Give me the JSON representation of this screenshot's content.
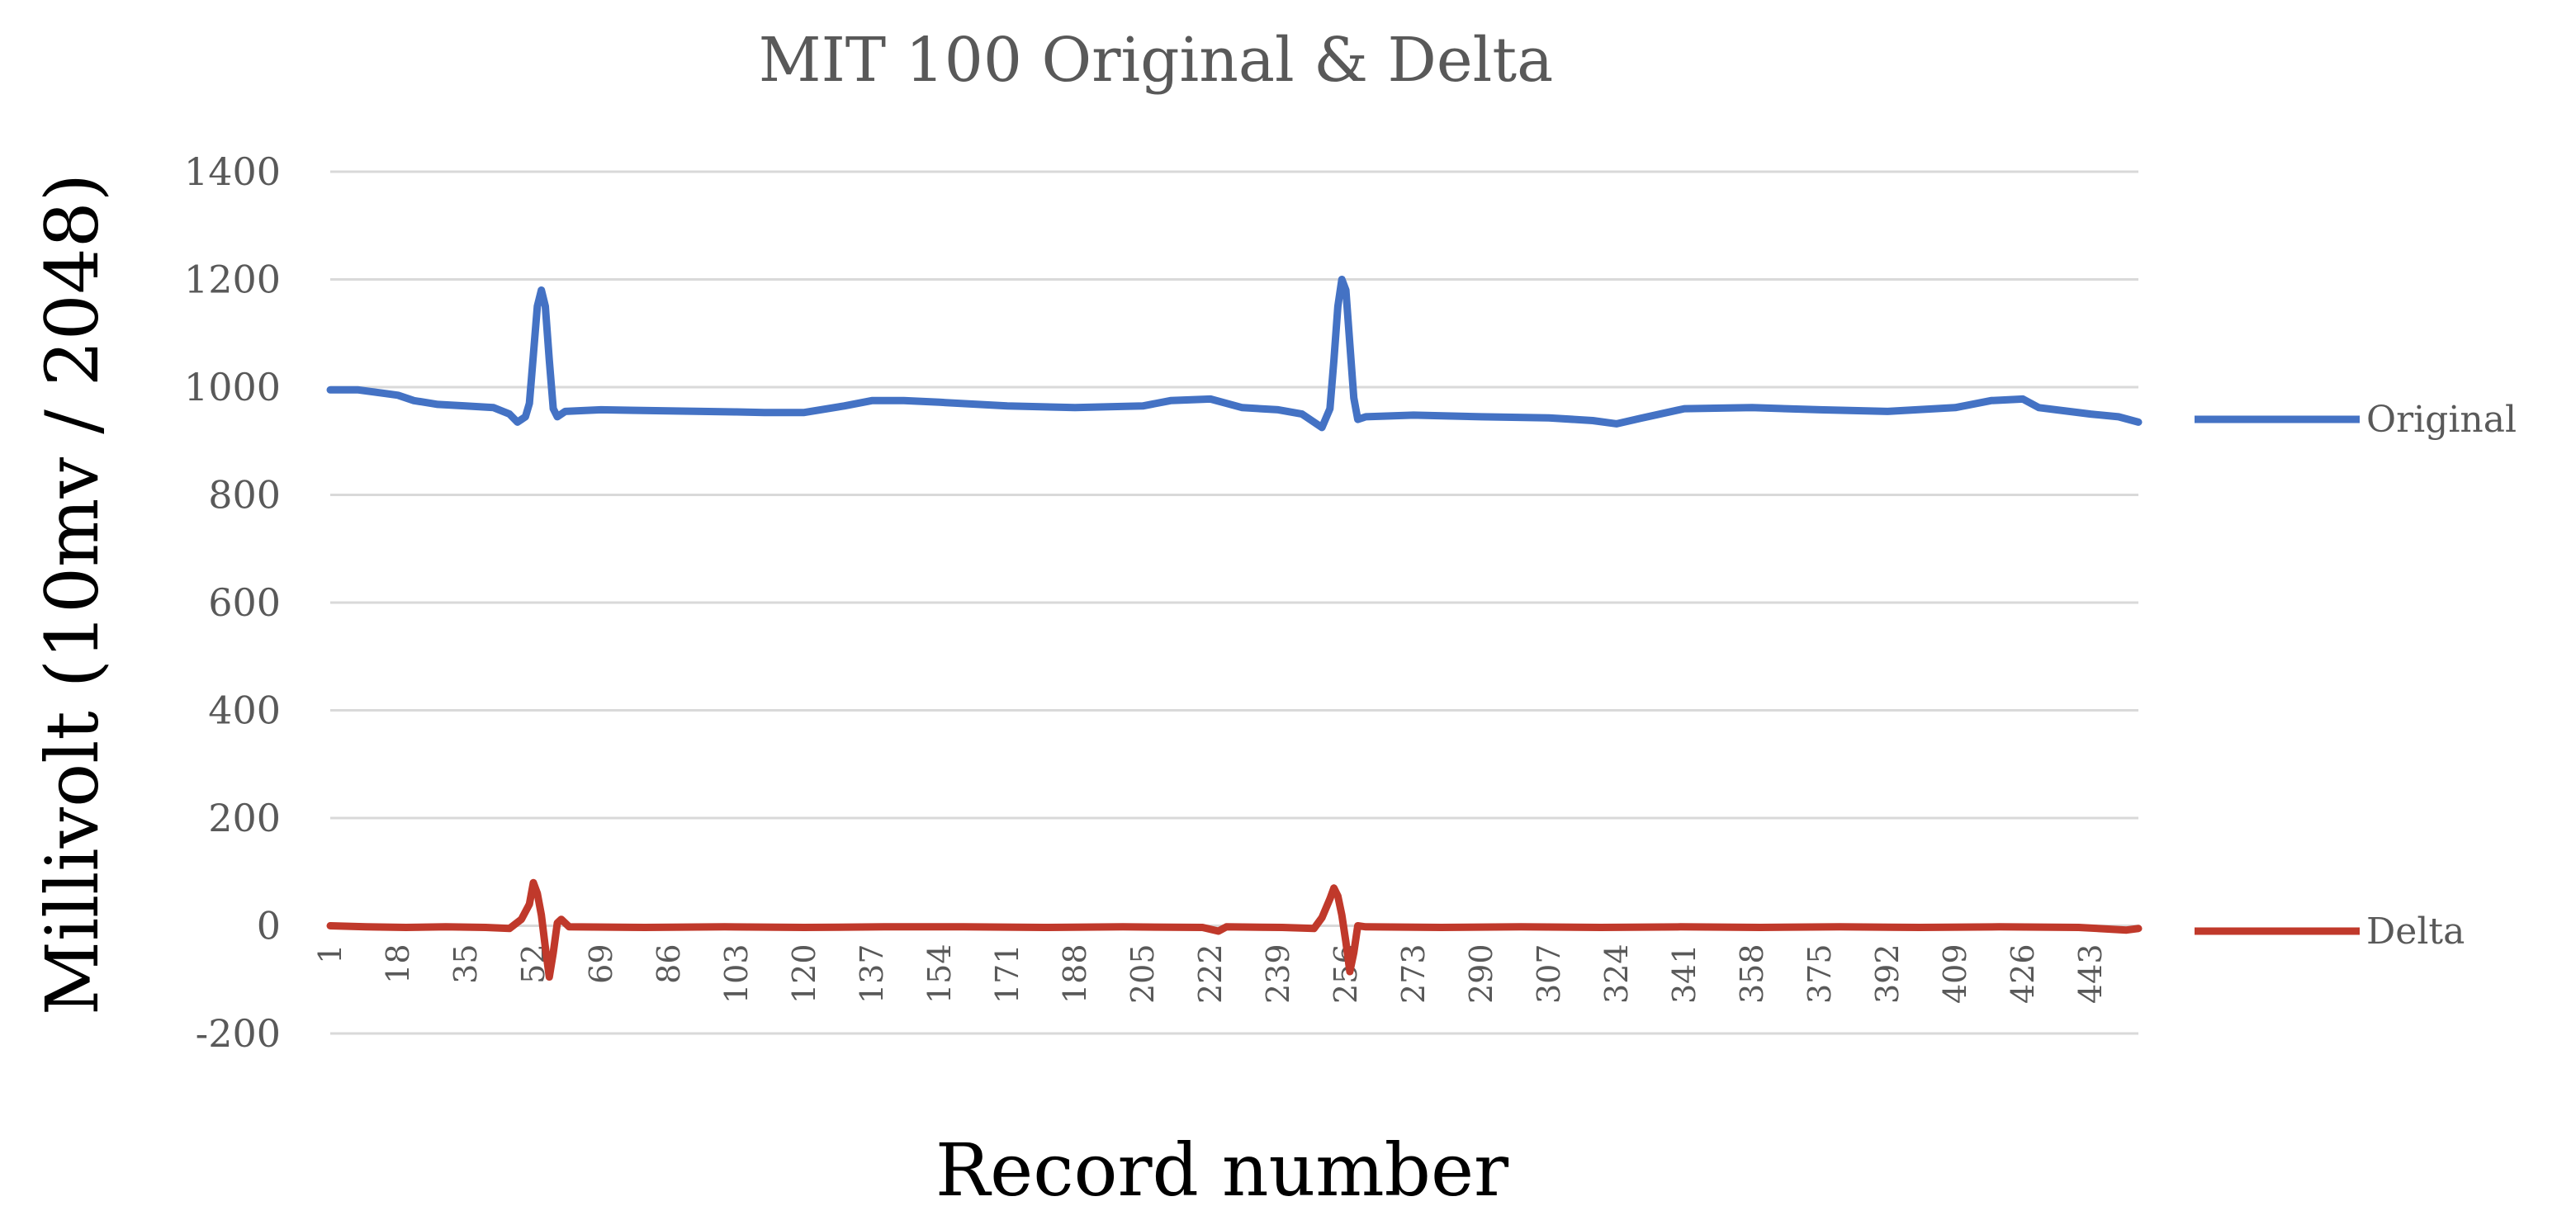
{
  "chart_data": {
    "type": "line",
    "title": "MIT 100 Original & Delta",
    "xlabel": "Record number",
    "ylabel": "Millivolt (10mv / 2048)",
    "ylim": [
      -200,
      1400
    ],
    "yticks": [
      -200,
      0,
      200,
      400,
      600,
      800,
      1000,
      1200,
      1400
    ],
    "xlim": [
      1,
      455
    ],
    "xticks": [
      1,
      18,
      35,
      52,
      69,
      86,
      103,
      120,
      137,
      154,
      171,
      188,
      205,
      222,
      239,
      256,
      273,
      290,
      307,
      324,
      341,
      358,
      375,
      392,
      409,
      426,
      443
    ],
    "grid": true,
    "legend": "right",
    "series": [
      {
        "name": "Original",
        "color": "#4472c4",
        "points": [
          [
            1,
            995
          ],
          [
            8,
            995
          ],
          [
            15,
            988
          ],
          [
            18,
            985
          ],
          [
            22,
            975
          ],
          [
            28,
            968
          ],
          [
            35,
            965
          ],
          [
            42,
            962
          ],
          [
            46,
            950
          ],
          [
            48,
            935
          ],
          [
            50,
            945
          ],
          [
            51,
            970
          ],
          [
            52,
            1060
          ],
          [
            53,
            1150
          ],
          [
            54,
            1180
          ],
          [
            55,
            1150
          ],
          [
            56,
            1050
          ],
          [
            57,
            960
          ],
          [
            58,
            945
          ],
          [
            60,
            955
          ],
          [
            69,
            958
          ],
          [
            86,
            956
          ],
          [
            103,
            954
          ],
          [
            110,
            953
          ],
          [
            120,
            953
          ],
          [
            130,
            965
          ],
          [
            137,
            975
          ],
          [
            145,
            975
          ],
          [
            154,
            972
          ],
          [
            171,
            965
          ],
          [
            188,
            962
          ],
          [
            205,
            965
          ],
          [
            212,
            975
          ],
          [
            222,
            978
          ],
          [
            230,
            962
          ],
          [
            239,
            958
          ],
          [
            245,
            950
          ],
          [
            250,
            925
          ],
          [
            252,
            960
          ],
          [
            253,
            1050
          ],
          [
            254,
            1150
          ],
          [
            255,
            1200
          ],
          [
            256,
            1180
          ],
          [
            257,
            1080
          ],
          [
            258,
            980
          ],
          [
            259,
            940
          ],
          [
            261,
            945
          ],
          [
            273,
            948
          ],
          [
            290,
            945
          ],
          [
            307,
            943
          ],
          [
            318,
            938
          ],
          [
            324,
            932
          ],
          [
            330,
            942
          ],
          [
            341,
            960
          ],
          [
            358,
            962
          ],
          [
            375,
            958
          ],
          [
            392,
            955
          ],
          [
            409,
            962
          ],
          [
            418,
            975
          ],
          [
            426,
            978
          ],
          [
            430,
            962
          ],
          [
            443,
            950
          ],
          [
            450,
            945
          ],
          [
            455,
            935
          ]
        ]
      },
      {
        "name": "Delta",
        "color": "#c0392b",
        "points": [
          [
            1,
            0
          ],
          [
            10,
            -2
          ],
          [
            20,
            -3
          ],
          [
            30,
            -2
          ],
          [
            40,
            -3
          ],
          [
            46,
            -5
          ],
          [
            49,
            12
          ],
          [
            51,
            40
          ],
          [
            52,
            80
          ],
          [
            53,
            60
          ],
          [
            54,
            20
          ],
          [
            55,
            -40
          ],
          [
            56,
            -95
          ],
          [
            57,
            -50
          ],
          [
            58,
            5
          ],
          [
            59,
            12
          ],
          [
            61,
            -2
          ],
          [
            80,
            -3
          ],
          [
            100,
            -2
          ],
          [
            120,
            -3
          ],
          [
            140,
            -2
          ],
          [
            160,
            -2
          ],
          [
            180,
            -3
          ],
          [
            200,
            -2
          ],
          [
            220,
            -3
          ],
          [
            224,
            -10
          ],
          [
            226,
            -2
          ],
          [
            240,
            -3
          ],
          [
            248,
            -5
          ],
          [
            250,
            15
          ],
          [
            252,
            50
          ],
          [
            253,
            70
          ],
          [
            254,
            55
          ],
          [
            255,
            20
          ],
          [
            256,
            -30
          ],
          [
            257,
            -85
          ],
          [
            258,
            -50
          ],
          [
            259,
            0
          ],
          [
            261,
            -2
          ],
          [
            280,
            -3
          ],
          [
            300,
            -2
          ],
          [
            320,
            -3
          ],
          [
            340,
            -2
          ],
          [
            360,
            -3
          ],
          [
            380,
            -2
          ],
          [
            400,
            -3
          ],
          [
            420,
            -2
          ],
          [
            440,
            -3
          ],
          [
            452,
            -8
          ],
          [
            455,
            -5
          ]
        ]
      }
    ]
  }
}
